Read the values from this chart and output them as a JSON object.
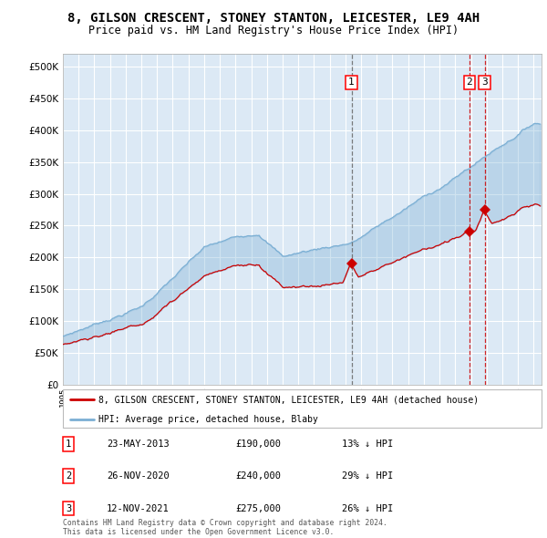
{
  "title": "8, GILSON CRESCENT, STONEY STANTON, LEICESTER, LE9 4AH",
  "subtitle": "Price paid vs. HM Land Registry's House Price Index (HPI)",
  "x_start_year": 1995,
  "x_end_year": 2025,
  "ylim": [
    0,
    520000
  ],
  "yticks": [
    0,
    50000,
    100000,
    150000,
    200000,
    250000,
    300000,
    350000,
    400000,
    450000,
    500000
  ],
  "plot_bg_color": "#dce9f5",
  "grid_color": "#ffffff",
  "hpi_line_color": "#7bafd4",
  "price_line_color": "#cc0000",
  "sale1_date": 2013.39,
  "sale1_price": 190000,
  "sale1_label": "1",
  "sale1_vline_color": "#666666",
  "sale1_vline_style": "--",
  "sale2_date": 2020.9,
  "sale2_price": 240000,
  "sale2_label": "2",
  "sale2_vline_color": "#cc0000",
  "sale2_vline_style": "--",
  "sale3_date": 2021.87,
  "sale3_price": 275000,
  "sale3_label": "3",
  "sale3_vline_color": "#cc0000",
  "sale3_vline_style": "--",
  "legend_line1": "8, GILSON CRESCENT, STONEY STANTON, LEICESTER, LE9 4AH (detached house)",
  "legend_line2": "HPI: Average price, detached house, Blaby",
  "table_rows": [
    {
      "num": "1",
      "date": "23-MAY-2013",
      "price": "£190,000",
      "hpi": "13% ↓ HPI"
    },
    {
      "num": "2",
      "date": "26-NOV-2020",
      "price": "£240,000",
      "hpi": "29% ↓ HPI"
    },
    {
      "num": "3",
      "date": "12-NOV-2021",
      "price": "£275,000",
      "hpi": "26% ↓ HPI"
    }
  ],
  "footer": "Contains HM Land Registry data © Crown copyright and database right 2024.\nThis data is licensed under the Open Government Licence v3.0."
}
